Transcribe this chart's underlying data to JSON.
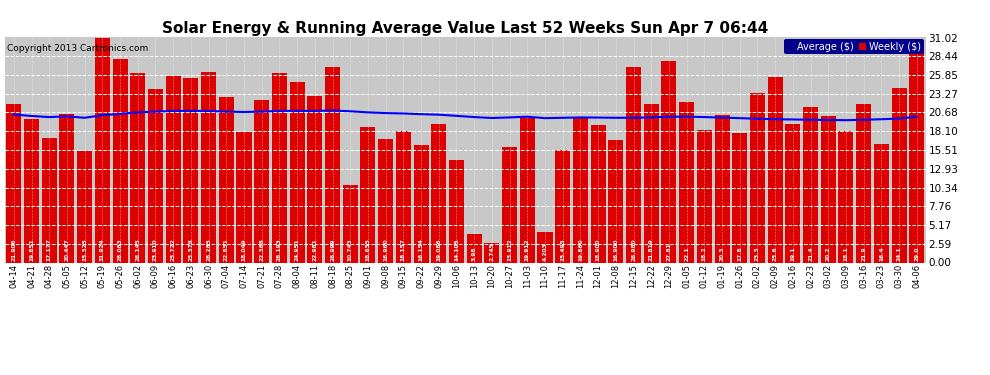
{
  "title": "Solar Energy & Running Average Value Last 52 Weeks Sun Apr 7 06:44",
  "copyright": "Copyright 2013 Cartronics.com",
  "bar_color": "#dd0000",
  "avg_line_color": "#0000ff",
  "background_color": "#ffffff",
  "plot_bg_color": "#c8c8c8",
  "grid_color": "#ffffff",
  "ylim": [
    0.0,
    31.02
  ],
  "yticks": [
    0.0,
    2.59,
    5.17,
    7.76,
    10.34,
    12.93,
    15.51,
    18.1,
    20.68,
    23.27,
    25.85,
    28.44,
    31.02
  ],
  "legend_avg_color": "#00008b",
  "legend_weekly_color": "#dd0000",
  "x_labels": [
    "04-14",
    "04-21",
    "04-28",
    "05-05",
    "05-12",
    "05-19",
    "05-26",
    "06-02",
    "06-09",
    "06-16",
    "06-23",
    "06-30",
    "07-04",
    "07-14",
    "07-21",
    "07-28",
    "08-04",
    "08-11",
    "08-18",
    "08-25",
    "09-01",
    "09-08",
    "09-15",
    "09-22",
    "09-29",
    "10-06",
    "10-13",
    "10-20",
    "10-27",
    "11-03",
    "11-10",
    "11-17",
    "11-24",
    "12-01",
    "12-08",
    "12-15",
    "12-22",
    "12-29",
    "01-05",
    "01-12",
    "01-19",
    "01-26",
    "02-02",
    "02-09",
    "02-16",
    "02-23",
    "03-02",
    "03-09",
    "03-16",
    "03-23",
    "03-30",
    "04-06"
  ],
  "weekly_values": [
    21.906,
    19.851,
    17.177,
    20.447,
    15.325,
    31.924,
    28.083,
    26.145,
    23.91,
    25.722,
    25.378,
    26.285,
    22.851,
    18.049,
    22.368,
    26.193,
    24.951,
    22.981,
    26.999,
    10.743,
    18.655,
    16.96,
    18.157,
    16.154,
    19.086,
    14.105,
    3.98,
    2.745,
    15.912,
    19.912,
    4.203,
    15.495,
    19.86,
    18.9,
    16.9,
    26.98,
    21.819,
    27.81,
    22.1,
    18.2,
    20.3,
    17.8,
    23.3,
    25.6,
    19.1,
    21.4,
    20.2,
    18.1,
    21.9,
    16.4,
    24.1,
    29.0
  ],
  "avg_values": [
    20.4,
    20.2,
    20.05,
    20.15,
    19.95,
    20.3,
    20.5,
    20.7,
    20.8,
    20.9,
    20.9,
    20.9,
    20.8,
    20.75,
    20.8,
    20.9,
    20.9,
    20.9,
    20.95,
    20.85,
    20.7,
    20.6,
    20.55,
    20.45,
    20.38,
    20.22,
    20.05,
    19.92,
    20.0,
    20.1,
    19.9,
    19.95,
    20.0,
    19.98,
    19.95,
    19.95,
    20.0,
    20.1,
    20.1,
    20.05,
    19.98,
    19.9,
    19.82,
    19.75,
    19.72,
    19.68,
    19.65,
    19.62,
    19.68,
    19.75,
    19.85,
    20.1
  ],
  "bar_value_labels": [
    "21.906",
    "19.851",
    "17.177",
    "20.447",
    "15.325",
    "31.924",
    "28.083",
    "26.145",
    "23.910",
    "25.722",
    "25.378",
    "26.285",
    "22.851",
    "18.049",
    "22.368",
    "26.193",
    "24.951",
    "22.981",
    "26.999",
    "10.743",
    "18.655",
    "16.960",
    "18.157",
    "16.154",
    "19.086",
    "14.105",
    "3.98",
    "2.745",
    "15.912",
    "19.912",
    "4.203",
    "15.495",
    "19.860",
    "18.900",
    "16.900",
    "26.980",
    "21.819",
    "27.81",
    "22.1",
    "18.2",
    "20.3",
    "17.8",
    "23.3",
    "25.6",
    "19.1",
    "21.4",
    "20.2",
    "18.1",
    "21.9",
    "16.4",
    "24.1",
    "29.0"
  ]
}
